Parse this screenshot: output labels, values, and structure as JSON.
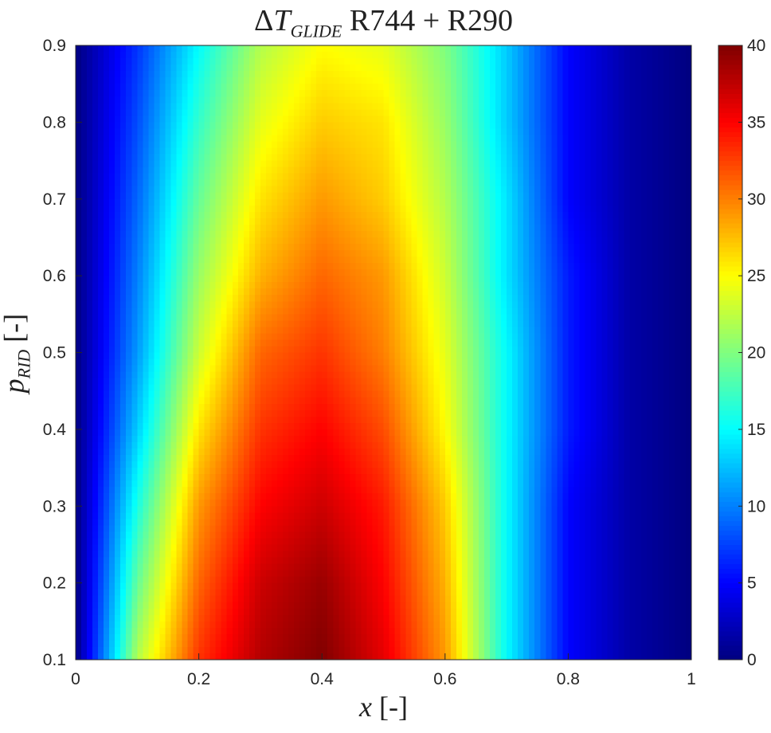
{
  "chart_data": {
    "type": "heatmap",
    "title": {
      "delta": "Δ",
      "var": "T",
      "sub": "GLIDE",
      "rest": " R744 + R290"
    },
    "xlabel": {
      "var": "x",
      "unit": " [-]"
    },
    "ylabel": {
      "var": "p",
      "sub": "RID",
      "unit": " [-]"
    },
    "xlim": [
      0,
      1
    ],
    "ylim": [
      0.1,
      0.9
    ],
    "clim": [
      0,
      40
    ],
    "colormap": "jet",
    "x": [
      0,
      0.1,
      0.2,
      0.3,
      0.4,
      0.5,
      0.6,
      0.7,
      0.8,
      0.9,
      1.0
    ],
    "y": [
      0.1,
      0.2,
      0.3,
      0.4,
      0.5,
      0.6,
      0.7,
      0.8,
      0.9
    ],
    "z": [
      [
        0,
        22,
        33,
        38,
        40,
        36,
        29,
        15,
        5,
        1.5,
        0
      ],
      [
        0,
        19,
        31,
        37,
        39,
        35,
        28,
        15,
        5,
        1.5,
        0
      ],
      [
        0,
        16,
        29,
        35,
        37,
        34,
        27,
        15,
        5,
        1.5,
        0
      ],
      [
        0,
        13,
        26,
        33,
        35,
        32,
        25,
        15,
        6,
        1.5,
        0
      ],
      [
        0,
        11,
        23,
        31,
        33,
        30,
        24,
        15,
        6,
        1.5,
        0
      ],
      [
        0,
        10,
        21,
        28,
        31,
        29,
        23,
        14,
        6,
        1.5,
        0
      ],
      [
        0,
        9,
        19,
        26,
        29,
        27,
        22,
        14,
        5,
        1.5,
        0
      ],
      [
        0,
        8,
        17,
        24,
        27,
        26,
        21,
        13,
        5,
        1.5,
        0
      ],
      [
        0,
        7,
        15,
        22,
        25,
        24,
        20,
        13,
        5,
        1.5,
        0
      ]
    ],
    "xticks": [
      "0",
      "0.2",
      "0.4",
      "0.6",
      "0.8",
      "1"
    ],
    "yticks": [
      "0.1",
      "0.2",
      "0.3",
      "0.4",
      "0.5",
      "0.6",
      "0.7",
      "0.8",
      "0.9"
    ],
    "cticks": [
      "0",
      "5",
      "10",
      "15",
      "20",
      "25",
      "30",
      "35",
      "40"
    ]
  }
}
